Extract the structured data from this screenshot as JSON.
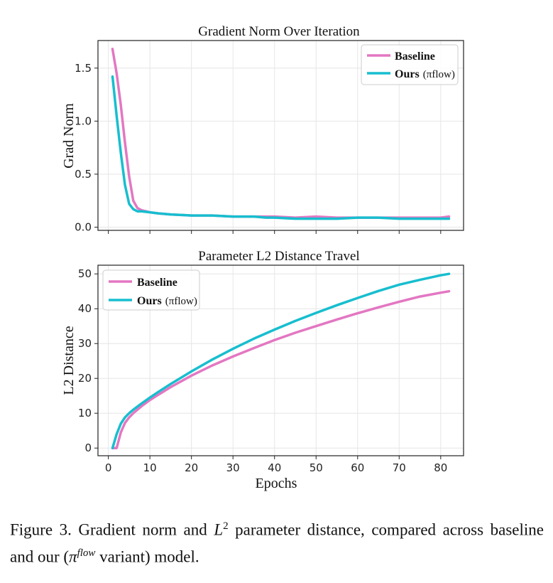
{
  "caption": {
    "pre": "Figure 3.  Gradient norm and ",
    "math_l2": "L",
    "math_l2_sup": "2",
    "mid": " parameter distance, compared across baseline and our (",
    "math_pi": "π",
    "math_pi_sup": "flow",
    "post": " variant) model."
  },
  "colors": {
    "baseline": "#e377c2",
    "ours": "#17becf"
  },
  "chart_data": [
    {
      "type": "line",
      "title": "Gradient Norm Over Iteration",
      "xlabel": "",
      "ylabel": "Grad Norm",
      "xlim": [
        -2.5,
        85.5
      ],
      "ylim": [
        -0.03,
        1.76
      ],
      "xticks": [
        0,
        10,
        20,
        30,
        40,
        50,
        60,
        70,
        80
      ],
      "xtick_labels_shown": false,
      "yticks": [
        0.0,
        0.5,
        1.0,
        1.5
      ],
      "ytick_labels": [
        "0.0",
        "0.5",
        "1.0",
        "1.5"
      ],
      "grid": true,
      "legend_position": "top-right",
      "legend": [
        {
          "label": "Baseline",
          "sub": ""
        },
        {
          "label": "Ours",
          "sub": "(πflow)"
        }
      ],
      "series": [
        {
          "name": "Baseline",
          "x": [
            1,
            2,
            3,
            4,
            5,
            6,
            7,
            8,
            10,
            12,
            15,
            20,
            25,
            30,
            35,
            40,
            45,
            50,
            55,
            60,
            65,
            70,
            75,
            80,
            82
          ],
          "y": [
            1.68,
            1.45,
            1.15,
            0.8,
            0.48,
            0.25,
            0.18,
            0.16,
            0.14,
            0.13,
            0.12,
            0.11,
            0.11,
            0.1,
            0.1,
            0.1,
            0.09,
            0.1,
            0.09,
            0.09,
            0.09,
            0.09,
            0.09,
            0.09,
            0.1
          ]
        },
        {
          "name": "Ours (πflow)",
          "x": [
            1,
            2,
            3,
            4,
            5,
            6,
            7,
            8,
            10,
            12,
            15,
            20,
            25,
            30,
            35,
            38,
            40,
            45,
            50,
            55,
            60,
            65,
            70,
            75,
            80,
            82
          ],
          "y": [
            1.42,
            1.05,
            0.7,
            0.4,
            0.22,
            0.17,
            0.15,
            0.15,
            0.14,
            0.13,
            0.12,
            0.11,
            0.11,
            0.1,
            0.1,
            0.09,
            0.09,
            0.08,
            0.08,
            0.08,
            0.09,
            0.09,
            0.08,
            0.08,
            0.08,
            0.08
          ]
        }
      ]
    },
    {
      "type": "line",
      "title": "Parameter L2 Distance Travel",
      "xlabel": "Epochs",
      "ylabel": "L2 Distance",
      "xlim": [
        -2.5,
        85.5
      ],
      "ylim": [
        -2.2,
        52.5
      ],
      "xticks": [
        0,
        10,
        20,
        30,
        40,
        50,
        60,
        70,
        80
      ],
      "xtick_labels": [
        "0",
        "10",
        "20",
        "30",
        "40",
        "50",
        "60",
        "70",
        "80"
      ],
      "xtick_labels_shown": true,
      "yticks": [
        0,
        10,
        20,
        30,
        40,
        50
      ],
      "ytick_labels": [
        "0",
        "10",
        "20",
        "30",
        "40",
        "50"
      ],
      "grid": true,
      "legend_position": "top-left",
      "legend": [
        {
          "label": "Baseline",
          "sub": ""
        },
        {
          "label": "Ours",
          "sub": "(πflow)"
        }
      ],
      "series": [
        {
          "name": "Baseline",
          "x": [
            1,
            2,
            3,
            4,
            5,
            6,
            8,
            10,
            12,
            15,
            20,
            25,
            30,
            35,
            40,
            45,
            50,
            55,
            60,
            65,
            70,
            75,
            80,
            82
          ],
          "y": [
            0,
            0,
            4.5,
            7.2,
            8.8,
            10.0,
            12.0,
            13.8,
            15.3,
            17.5,
            20.8,
            23.7,
            26.3,
            28.7,
            31.0,
            33.1,
            35.0,
            36.9,
            38.7,
            40.4,
            42.0,
            43.5,
            44.6,
            45.0
          ]
        },
        {
          "name": "Ours (πflow)",
          "x": [
            1,
            2,
            3,
            4,
            5,
            6,
            8,
            10,
            12,
            15,
            20,
            25,
            30,
            35,
            40,
            45,
            50,
            55,
            60,
            65,
            70,
            75,
            80,
            82
          ],
          "y": [
            0,
            4.0,
            7.0,
            8.8,
            10.0,
            11.0,
            12.8,
            14.5,
            16.1,
            18.4,
            22.0,
            25.4,
            28.5,
            31.4,
            34.0,
            36.5,
            38.8,
            41.0,
            43.1,
            45.1,
            46.9,
            48.3,
            49.6,
            50.0
          ]
        }
      ]
    }
  ]
}
